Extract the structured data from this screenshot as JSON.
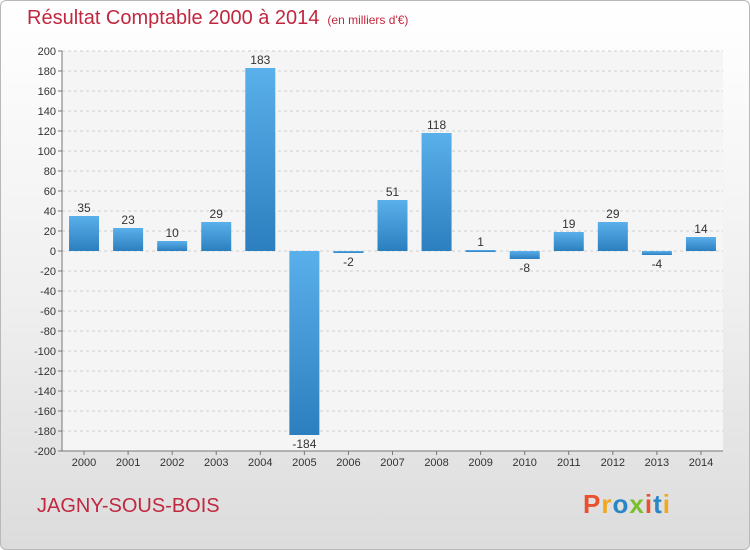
{
  "header": {
    "title": "Résultat Comptable 2000 à 2014",
    "subtitle": "(en milliers d'€)"
  },
  "footer": {
    "city": "JAGNY-SOUS-BOIS",
    "logo": "Proxiti"
  },
  "colors": {
    "title": "#c0283f",
    "bar_light": "#5ab0eb",
    "bar_dark": "#2c7fbe",
    "logo_letters": [
      "#e8502e",
      "#f1a81d",
      "#2b86c5",
      "#7bbf2a",
      "#e8502e",
      "#2b86c5",
      "#f1a81d"
    ]
  },
  "chart_data": {
    "type": "bar",
    "categories": [
      "2000",
      "2001",
      "2002",
      "2003",
      "2004",
      "2005",
      "2006",
      "2007",
      "2008",
      "2009",
      "2010",
      "2011",
      "2012",
      "2013",
      "2014"
    ],
    "values": [
      35,
      23,
      10,
      29,
      183,
      -184,
      -2,
      51,
      118,
      1,
      -8,
      19,
      29,
      -4,
      14
    ],
    "ylim": [
      -200,
      200
    ],
    "ytick_step": 20,
    "grid": "horizontal-dashed",
    "legend": "none"
  }
}
